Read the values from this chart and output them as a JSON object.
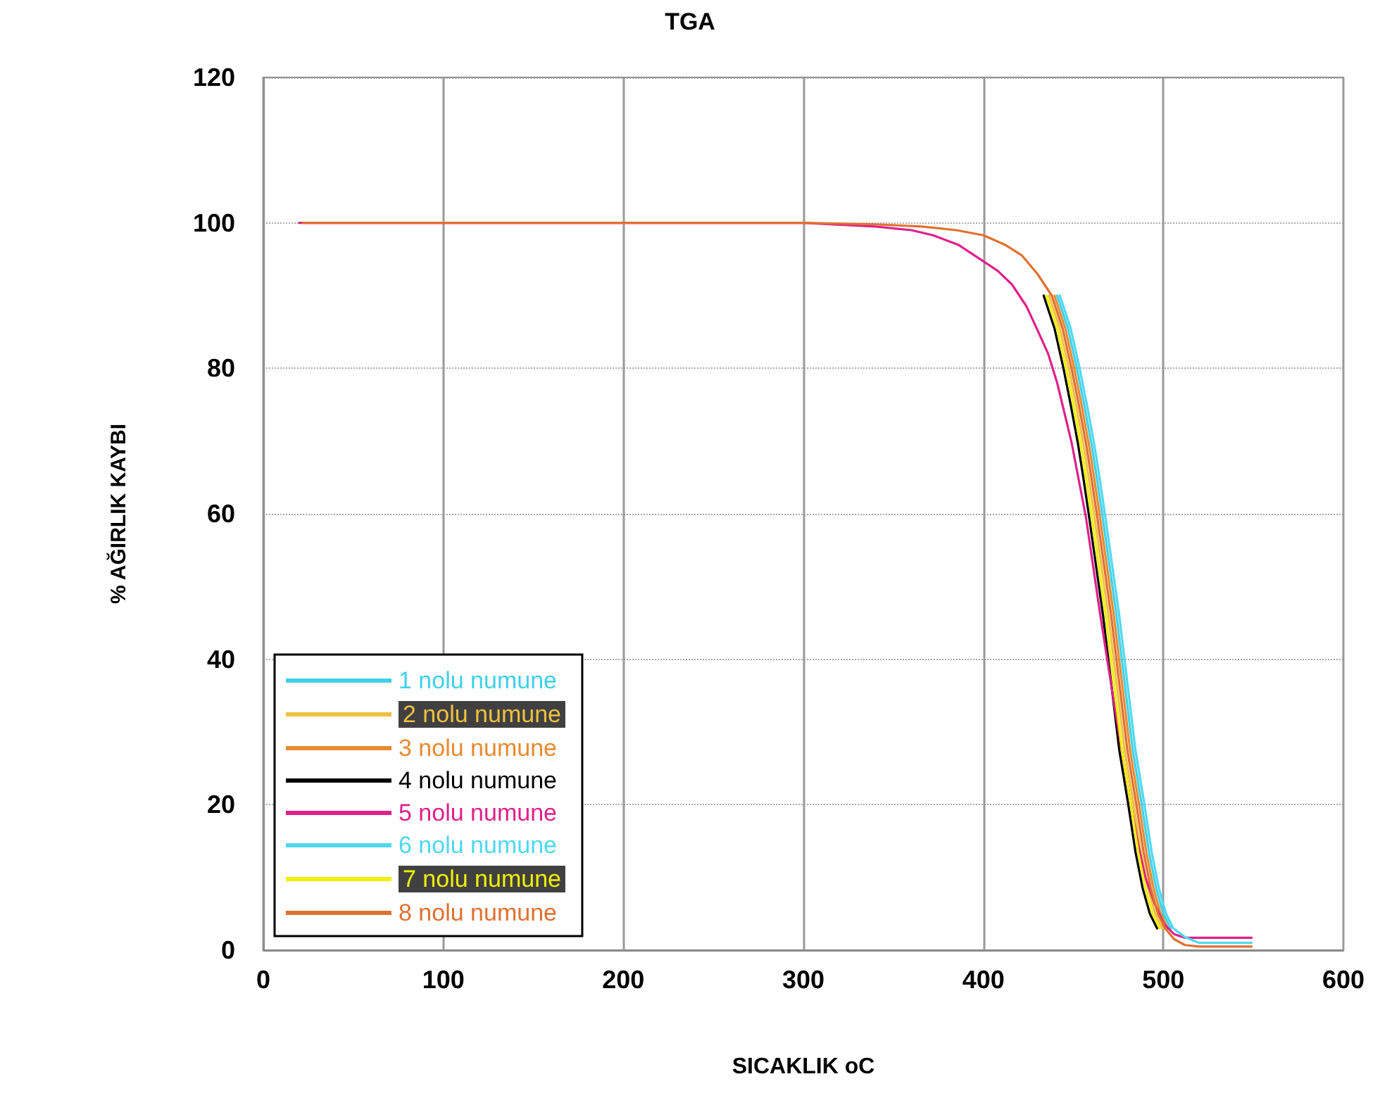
{
  "chart_data": {
    "type": "line",
    "title": "TGA",
    "xlabel": "SICAKLIK oC",
    "ylabel": "% AĞIRLIK KAYBI",
    "xlim": [
      0,
      600
    ],
    "xticks": [
      0,
      100,
      200,
      300,
      400,
      500,
      600
    ],
    "ylim": [
      0,
      120
    ],
    "yticks": [
      0,
      20,
      40,
      60,
      80,
      100,
      120
    ],
    "grid": true,
    "legend": "bottom left",
    "marker": "none",
    "line_style": "solid",
    "series": [
      {
        "name": "1 nolu numune",
        "color": "#40d0e8",
        "x": [
          441,
          447,
          452,
          456,
          460,
          463,
          466,
          470,
          474,
          479,
          483,
          488,
          492,
          496,
          500,
          504
        ],
        "values": [
          90,
          85.5,
          80,
          75,
          69.7,
          65,
          60,
          53,
          46,
          35.7,
          27.5,
          20,
          13.5,
          8.5,
          5,
          3
        ]
      },
      {
        "name": "2 nolu numune",
        "color": "#f0c040",
        "x": [
          436.5,
          442.5,
          447.5,
          451.5,
          455.5,
          458.5,
          461.5,
          465.5,
          469.5,
          474.5,
          478.5,
          483.5,
          487.5,
          491.5,
          495.5,
          499.5
        ],
        "values": [
          90,
          85.5,
          80,
          75,
          69.7,
          65,
          60,
          53,
          46,
          35.7,
          27.5,
          20,
          13.5,
          8.5,
          5,
          3
        ]
      },
      {
        "name": "3 nolu numune",
        "color": "#e88a30",
        "x": [
          439.5,
          445.5,
          450.5,
          454.5,
          458.5,
          461.5,
          464.5,
          468.5,
          472.5,
          477.5,
          481.5,
          486.5,
          490.5,
          494.5,
          498.5,
          502.5
        ],
        "values": [
          90,
          85.5,
          80,
          75,
          69.7,
          65,
          60,
          53,
          46,
          35.7,
          27.5,
          20,
          13.5,
          8.5,
          5,
          3
        ]
      },
      {
        "name": "4 nolu numune",
        "color": "#000000",
        "x": [
          433.5,
          439.5,
          444.5,
          448.5,
          452.5,
          455.5,
          458.5,
          462.5,
          466.5,
          471.5,
          475.5,
          480.5,
          484.5,
          488.5,
          492.5,
          496.5
        ],
        "values": [
          90,
          85.5,
          80,
          75,
          69.7,
          65,
          60,
          53,
          46,
          35.7,
          27.5,
          20,
          13.5,
          8.5,
          5,
          3
        ]
      },
      {
        "name": "5 nolu numune",
        "color": "#e0208a",
        "x": [
          20,
          100,
          200,
          300,
          340,
          360,
          372,
          386,
          399.5,
          408,
          416,
          424,
          430,
          436,
          441,
          449,
          457,
          465,
          473.6,
          482,
          486,
          490,
          495,
          500,
          506,
          512,
          520,
          549
        ],
        "values": [
          100,
          100,
          100,
          100,
          99.5,
          99,
          98.3,
          97,
          94.8,
          93.4,
          91.5,
          88.5,
          85.3,
          82,
          78,
          69.8,
          59.5,
          46,
          32.4,
          20,
          14.5,
          10,
          6.5,
          3.7,
          2.2,
          1.7,
          1.7,
          1.7
        ]
      },
      {
        "name": "6 nolu numune",
        "color": "#50d8f0",
        "x": [
          442.5,
          448.5,
          453.5,
          457.5,
          461.5,
          464.5,
          467.5,
          471.5,
          475.5,
          480.5,
          484.5,
          489.5,
          493.5,
          497.5,
          501.5,
          505.5,
          512,
          520,
          549
        ],
        "values": [
          90,
          85.5,
          80,
          75,
          69.7,
          65,
          60,
          53,
          46,
          35.7,
          27.5,
          20,
          13.5,
          8.5,
          5,
          3,
          1.8,
          1,
          1
        ]
      },
      {
        "name": "7 nolu numune",
        "color": "#f0f000",
        "x": [
          435,
          441,
          446,
          450,
          454,
          457,
          460,
          464,
          468,
          473,
          477,
          482,
          486,
          490,
          494,
          498
        ],
        "values": [
          90,
          85.5,
          80,
          75,
          69.7,
          65,
          60,
          53,
          46,
          35.7,
          27.5,
          20,
          13.5,
          8.5,
          5,
          3
        ]
      },
      {
        "name": "8 nolu numune",
        "color": "#e07030",
        "x": [
          22,
          100,
          200,
          300,
          340,
          366,
          385,
          400,
          412,
          421.5,
          430,
          438,
          444,
          449,
          453,
          457,
          460,
          463,
          467,
          471,
          476,
          480,
          485,
          489,
          493,
          497,
          501,
          506,
          512,
          520,
          549
        ],
        "values": [
          100,
          100,
          100,
          100,
          99.8,
          99.5,
          99,
          98.3,
          97,
          95.5,
          93,
          90,
          85.5,
          80,
          75,
          69.7,
          65,
          60,
          53,
          46,
          35.7,
          27.5,
          20,
          13.5,
          8.5,
          5,
          3,
          1.5,
          0.7,
          0.5,
          0.5
        ]
      }
    ]
  }
}
